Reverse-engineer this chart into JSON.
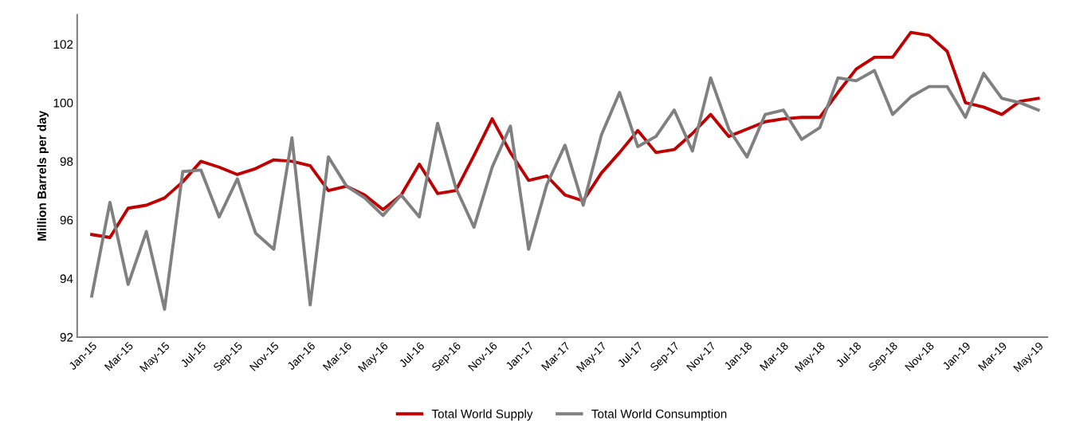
{
  "chart_data": {
    "type": "line",
    "ylabel": "Million Barrels per day",
    "categories": [
      "Jan-15",
      null,
      "Mar-15",
      null,
      "May-15",
      null,
      "Jul-15",
      null,
      "Sep-15",
      null,
      "Nov-15",
      null,
      "Jan-16",
      null,
      "Mar-16",
      null,
      "May-16",
      null,
      "Jul-16",
      null,
      "Sep-16",
      null,
      "Nov-16",
      null,
      "Jan-17",
      null,
      "Mar-17",
      null,
      "May-17",
      null,
      "Jul-17",
      null,
      "Sep-17",
      null,
      "Nov-17",
      null,
      "Jan-18",
      null,
      "Mar-18",
      null,
      "May-18",
      null,
      "Jul-18",
      null,
      "Sep-18",
      null,
      "Nov-18",
      null,
      "Jan-19",
      null,
      "Mar-19",
      null,
      "May-19"
    ],
    "series": [
      {
        "name": "Total World Supply",
        "color": "#c00000",
        "values": [
          95.5,
          95.4,
          96.4,
          96.5,
          96.75,
          97.3,
          98.0,
          97.8,
          97.55,
          97.75,
          98.05,
          98.0,
          97.85,
          97.0,
          97.15,
          96.85,
          96.35,
          96.85,
          97.9,
          96.9,
          97.0,
          98.2,
          99.45,
          98.3,
          97.35,
          97.5,
          96.85,
          96.65,
          97.6,
          98.3,
          99.05,
          98.3,
          98.4,
          98.95,
          99.6,
          98.85,
          99.1,
          99.35,
          99.45,
          99.5,
          99.5,
          100.35,
          101.15,
          101.55,
          101.55,
          102.4,
          102.3,
          101.75,
          100.0,
          99.85,
          99.6,
          100.05,
          100.15
        ]
      },
      {
        "name": "Total World Consumption",
        "color": "#808080",
        "values": [
          93.4,
          96.6,
          93.8,
          95.6,
          92.95,
          97.65,
          97.7,
          96.1,
          97.4,
          95.55,
          95.0,
          98.8,
          93.1,
          98.15,
          97.15,
          96.75,
          96.15,
          96.85,
          96.1,
          99.3,
          97.1,
          95.75,
          97.8,
          99.2,
          95.0,
          97.2,
          98.55,
          96.5,
          98.9,
          100.35,
          98.5,
          98.85,
          99.75,
          98.35,
          100.85,
          99.1,
          98.15,
          99.6,
          99.75,
          98.75,
          99.15,
          100.85,
          100.75,
          101.1,
          99.6,
          100.2,
          100.55,
          100.55,
          99.5,
          101.0,
          100.15,
          100.0,
          99.75
        ]
      }
    ],
    "ylim": [
      92,
      103
    ],
    "yticks": [
      92,
      94,
      96,
      98,
      100,
      102
    ],
    "grid": false,
    "legend": "bottom",
    "marker": "none",
    "line_style": "solid"
  }
}
